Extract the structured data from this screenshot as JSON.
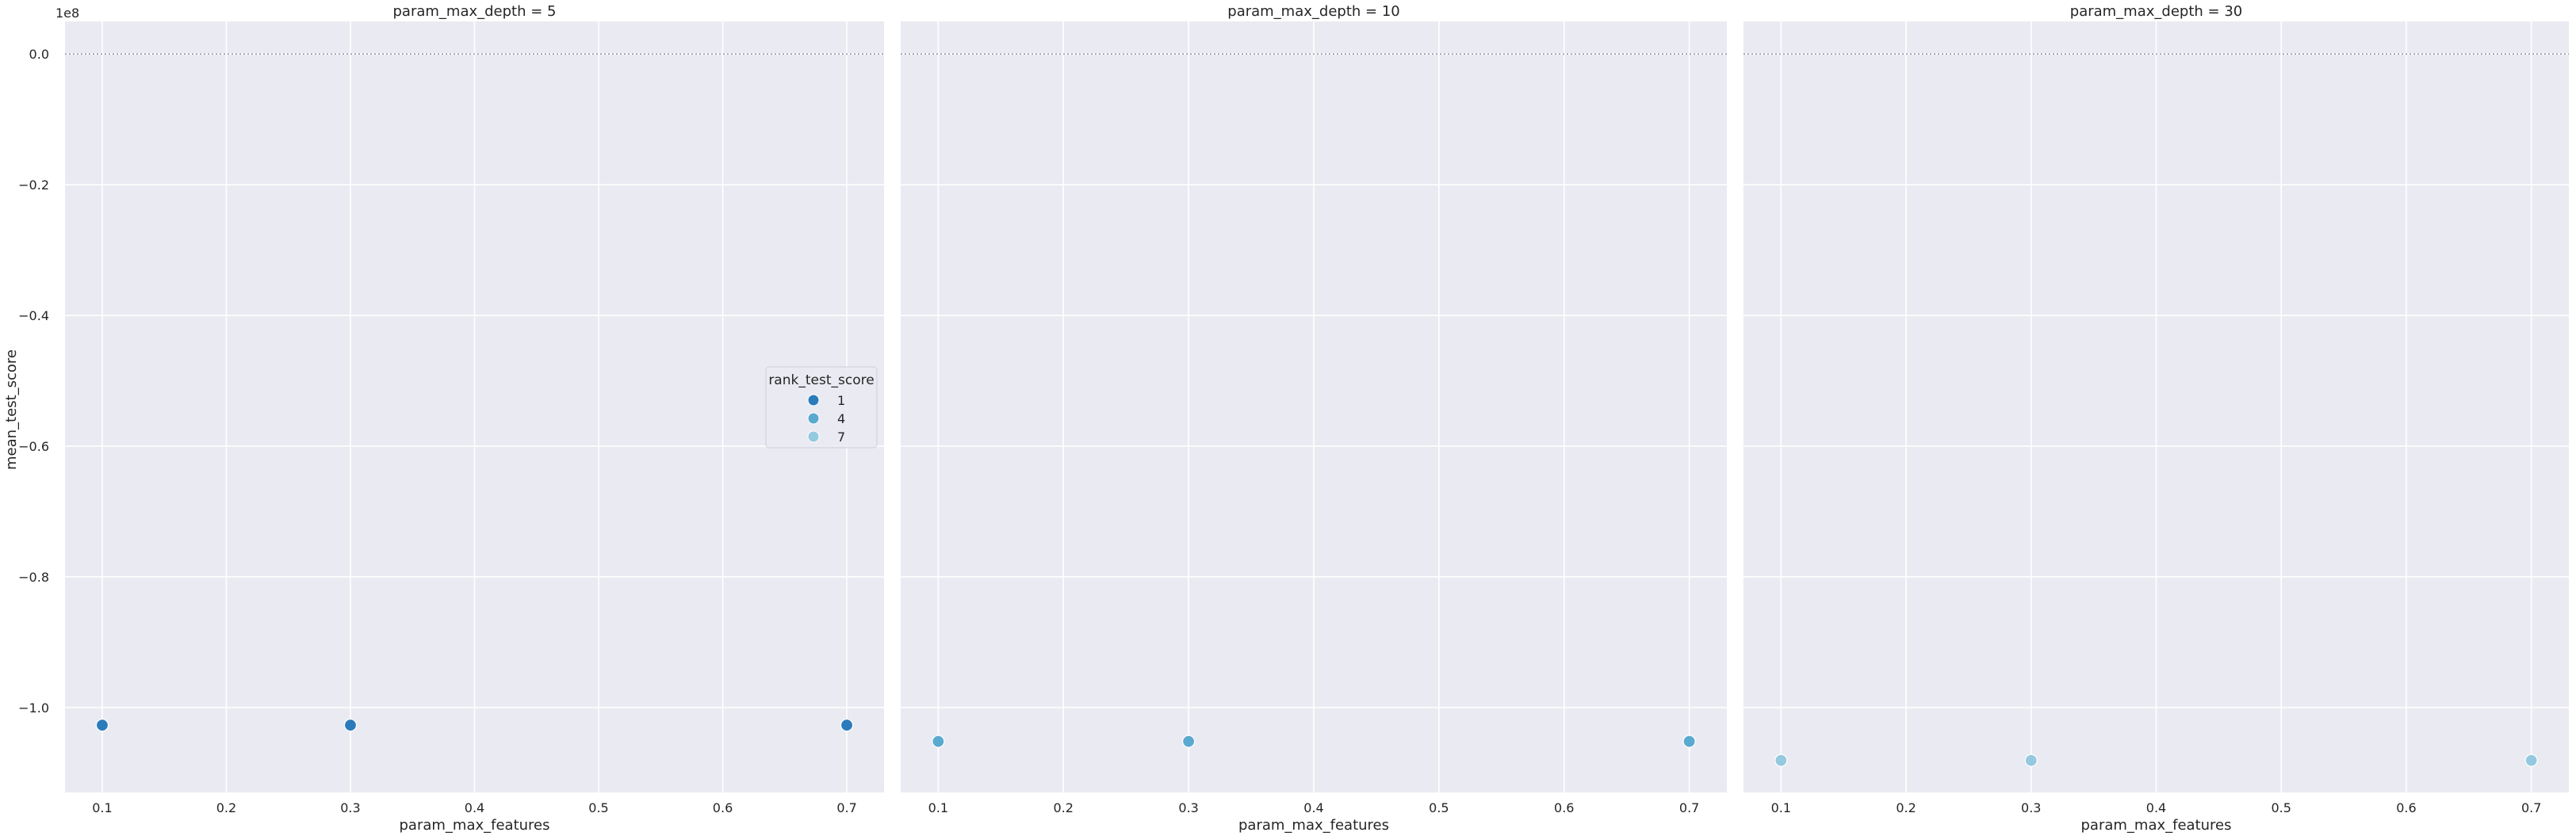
{
  "chart_data": {
    "type": "scatter",
    "facet_variable": "param_max_depth",
    "xlabel": "param_max_features",
    "ylabel": "mean_test_score",
    "y_offset_text": "1e8",
    "xlim": [
      0.07,
      0.73
    ],
    "ylim": [
      -113000000.0,
      5000000.0
    ],
    "x_ticks": [
      0.1,
      0.2,
      0.3,
      0.4,
      0.5,
      0.6,
      0.7
    ],
    "x_tick_labels": [
      "0.1",
      "0.2",
      "0.3",
      "0.4",
      "0.5",
      "0.6",
      "0.7"
    ],
    "y_ticks": [
      0.0,
      -20000000.0,
      -40000000.0,
      -60000000.0,
      -80000000.0,
      -100000000.0
    ],
    "y_tick_labels": [
      "0.0",
      "−0.2",
      "−0.4",
      "−0.6",
      "−0.8",
      "−1.0"
    ],
    "reference_line_y": 0,
    "grid": true,
    "hue_variable": "rank_test_score",
    "hue_colors": {
      "1": "#2b7bba",
      "4": "#5aa9cf",
      "7": "#94c9e0"
    },
    "legend": {
      "title": "rank_test_score",
      "placement": "center-right of first panel",
      "entries": [
        {
          "label": "1",
          "color": "#2b7bba"
        },
        {
          "label": "4",
          "color": "#5aa9cf"
        },
        {
          "label": "7",
          "color": "#94c9e0"
        }
      ]
    },
    "facets": [
      {
        "title": "param_max_depth = 5",
        "points": [
          {
            "x": 0.1,
            "y": -102700000.0,
            "rank": "1"
          },
          {
            "x": 0.3,
            "y": -102700000.0,
            "rank": "1"
          },
          {
            "x": 0.7,
            "y": -102700000.0,
            "rank": "1"
          }
        ]
      },
      {
        "title": "param_max_depth = 10",
        "points": [
          {
            "x": 0.1,
            "y": -105200000.0,
            "rank": "4"
          },
          {
            "x": 0.3,
            "y": -105200000.0,
            "rank": "4"
          },
          {
            "x": 0.7,
            "y": -105200000.0,
            "rank": "4"
          }
        ]
      },
      {
        "title": "param_max_depth = 30",
        "points": [
          {
            "x": 0.1,
            "y": -108100000.0,
            "rank": "7"
          },
          {
            "x": 0.3,
            "y": -108100000.0,
            "rank": "7"
          },
          {
            "x": 0.7,
            "y": -108100000.0,
            "rank": "7"
          }
        ]
      }
    ]
  }
}
